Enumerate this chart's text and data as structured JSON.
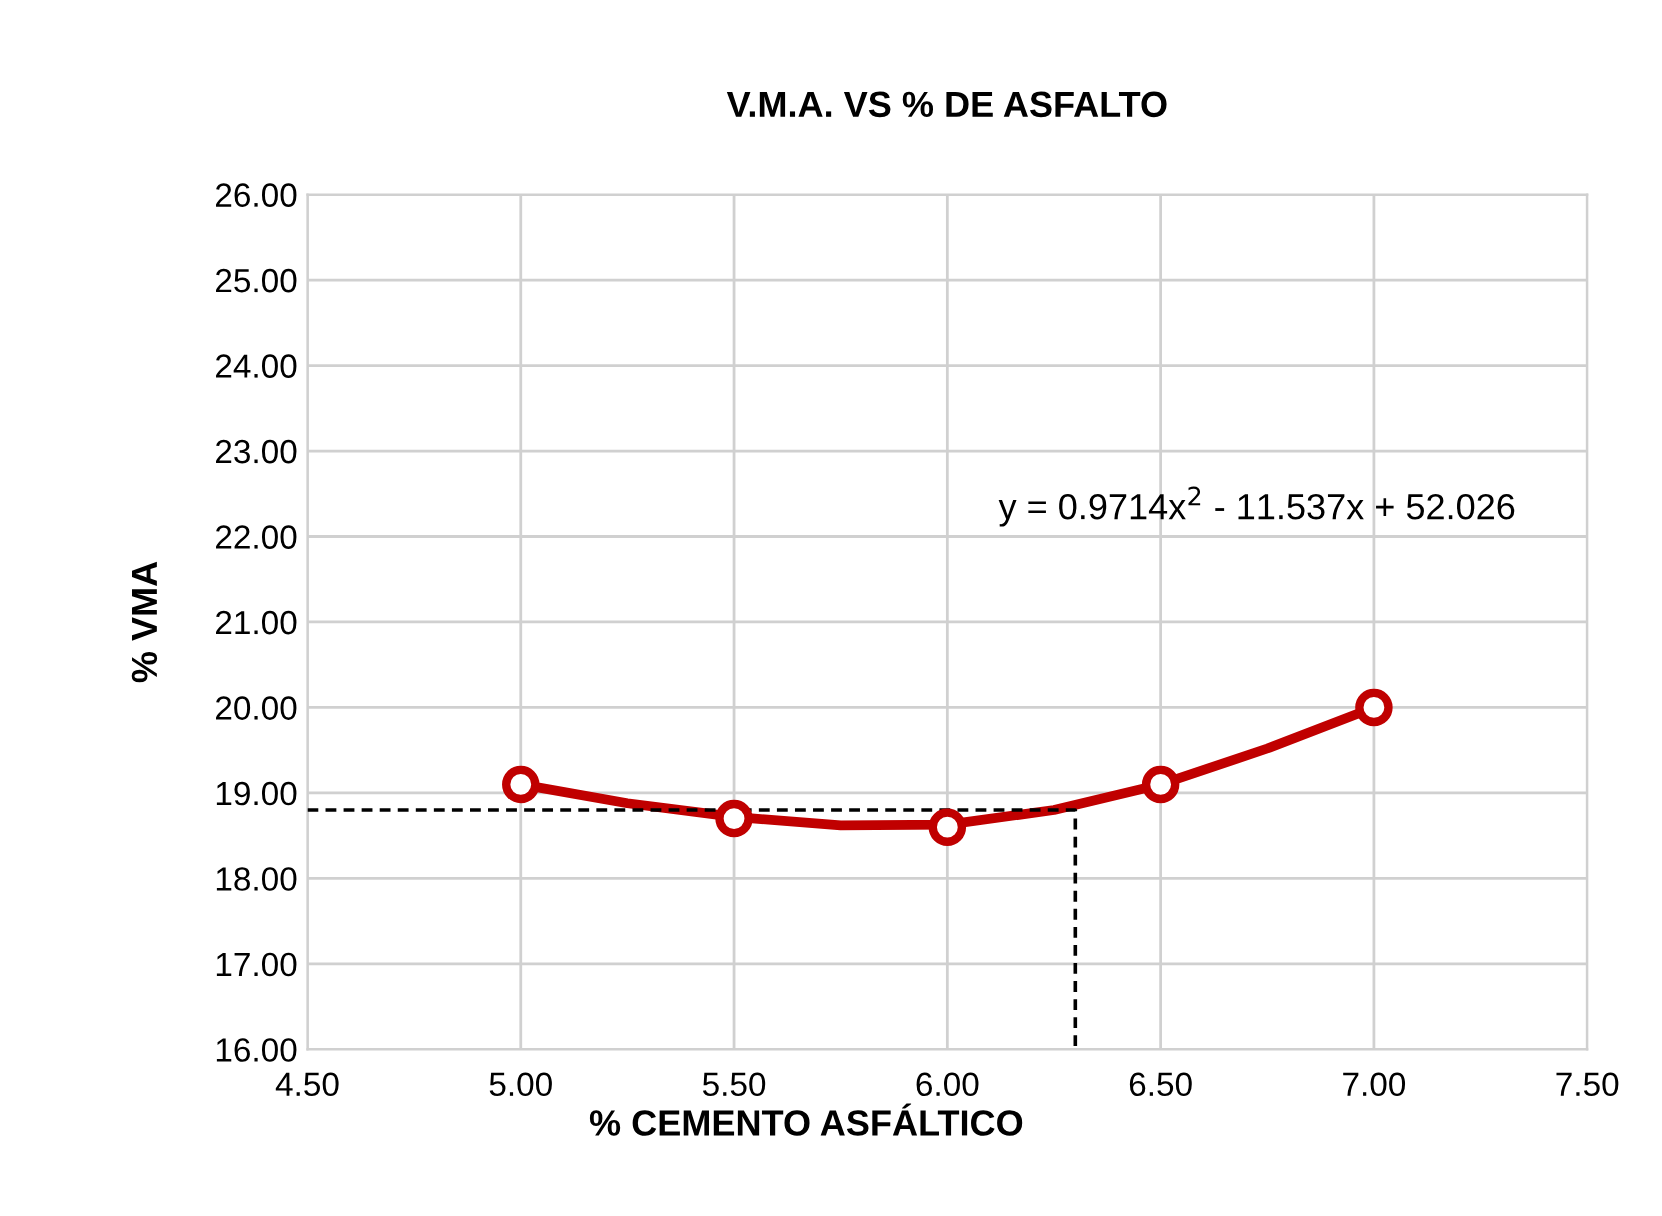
{
  "chart_data": {
    "type": "line",
    "title": "V.M.A. VS % DE ASFALTO",
    "xlabel": "% CEMENTO ASFÁLTICO",
    "ylabel": "% VMA",
    "annotations": [
      "y = 0.9714x$^{2}$ - 11.537x + 52.026"
    ],
    "series": [
      {
        "color": "#c00000",
        "marker": "none",
        "line_style": "solid",
        "x": [
          5.0,
          5.25,
          5.5,
          5.75,
          6.0,
          6.25,
          6.5,
          6.75,
          7.0
        ],
        "values": [
          19.1,
          18.88,
          18.72,
          18.62,
          18.63,
          18.8,
          19.1,
          19.52,
          20.0
        ]
      },
      {
        "type": "scatter",
        "color": "#c00000",
        "marker": "circle",
        "x": [
          5.0,
          5.5,
          6.0,
          6.5,
          7.0
        ],
        "values": [
          19.1,
          18.7,
          18.6,
          19.1,
          20.0
        ]
      },
      {
        "type": "line",
        "color": "#000000",
        "marker": "none",
        "line_style": "dashed",
        "x": [
          4.5,
          6.3,
          6.3
        ],
        "values": [
          18.8,
          18.8,
          16.0
        ]
      }
    ],
    "xlim": [
      4.5,
      7.5
    ],
    "ylim": [
      16,
      26
    ],
    "xticks": [
      {
        "value": 4.5,
        "label": "4.50"
      },
      {
        "value": 5.0,
        "label": "5.00"
      },
      {
        "value": 5.5,
        "label": "5.50"
      },
      {
        "value": 6.0,
        "label": "6.00"
      },
      {
        "value": 6.5,
        "label": "6.50"
      },
      {
        "value": 7.0,
        "label": "7.00"
      },
      {
        "value": 7.5,
        "label": "7.50"
      }
    ],
    "yticks": [
      {
        "value": 16,
        "label": "16.00"
      },
      {
        "value": 17,
        "label": "17.00"
      },
      {
        "value": 18,
        "label": "18.00"
      },
      {
        "value": 19,
        "label": "19.00"
      },
      {
        "value": 20,
        "label": "20.00"
      },
      {
        "value": 21,
        "label": "21.00"
      },
      {
        "value": 22,
        "label": "22.00"
      },
      {
        "value": 23,
        "label": "23.00"
      },
      {
        "value": 24,
        "label": "24.00"
      },
      {
        "value": 25,
        "label": "25.00"
      },
      {
        "value": 26,
        "label": "26.00"
      }
    ],
    "grid": true,
    "legend": false
  }
}
